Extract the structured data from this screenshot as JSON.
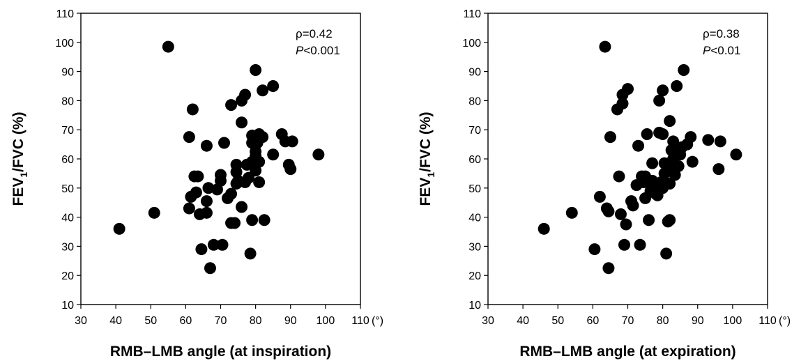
{
  "chart_data": [
    {
      "type": "scatter",
      "xlabel": "RMB–LMB angle (at inspiration)",
      "ylabel_main": "FEV",
      "ylabel_sub": "1",
      "ylabel_rest": "/FVC (%)",
      "xlim": [
        30,
        110
      ],
      "ylim": [
        10,
        110
      ],
      "xticks": [
        "30",
        "40",
        "50",
        "60",
        "70",
        "80",
        "90",
        "100",
        "110"
      ],
      "yticks": [
        "10",
        "20",
        "30",
        "40",
        "50",
        "60",
        "70",
        "80",
        "90",
        "100",
        "110"
      ],
      "x_unit": "(°)",
      "annotation_rho": "ρ=0.42",
      "annotation_p_italic": "P",
      "annotation_p_rest": "<0.001",
      "points": [
        [
          41,
          36
        ],
        [
          51,
          41.5
        ],
        [
          55,
          98.5
        ],
        [
          61,
          67.5
        ],
        [
          61,
          43
        ],
        [
          61.5,
          47
        ],
        [
          62,
          77
        ],
        [
          62.5,
          54
        ],
        [
          63,
          48.5
        ],
        [
          63.5,
          54
        ],
        [
          64,
          41
        ],
        [
          64.5,
          29
        ],
        [
          66,
          45.5
        ],
        [
          66,
          41.5
        ],
        [
          66,
          64.5
        ],
        [
          66.5,
          50
        ],
        [
          67,
          22.5
        ],
        [
          68,
          30.5
        ],
        [
          69,
          49.5
        ],
        [
          70,
          52.5
        ],
        [
          70,
          54.5
        ],
        [
          70.5,
          30.5
        ],
        [
          71,
          65.5
        ],
        [
          72,
          46.5
        ],
        [
          73,
          78.5
        ],
        [
          73,
          48
        ],
        [
          73,
          38
        ],
        [
          74,
          38
        ],
        [
          74.5,
          51.5
        ],
        [
          74.5,
          55.5
        ],
        [
          74.5,
          58
        ],
        [
          75,
          52.5
        ],
        [
          76,
          43.5
        ],
        [
          76,
          80
        ],
        [
          76,
          72.5
        ],
        [
          77,
          82
        ],
        [
          77,
          52
        ],
        [
          77.5,
          58
        ],
        [
          78,
          53.5
        ],
        [
          78.5,
          27.5
        ],
        [
          79,
          39
        ],
        [
          79,
          65.5
        ],
        [
          79,
          59
        ],
        [
          79,
          68
        ],
        [
          80,
          61
        ],
        [
          80,
          56
        ],
        [
          80,
          62.5
        ],
        [
          80,
          90.5
        ],
        [
          80.5,
          65.5
        ],
        [
          81,
          52
        ],
        [
          81,
          59
        ],
        [
          81,
          68.5
        ],
        [
          82,
          83.5
        ],
        [
          82,
          67.5
        ],
        [
          82.5,
          39
        ],
        [
          85,
          85
        ],
        [
          85,
          61.5
        ],
        [
          87.5,
          68.5
        ],
        [
          88.5,
          66
        ],
        [
          89.5,
          58
        ],
        [
          90,
          56.5
        ],
        [
          90.5,
          66
        ],
        [
          98,
          61.5
        ]
      ]
    },
    {
      "type": "scatter",
      "xlabel": "RMB–LMB angle (at expiration)",
      "ylabel_main": "FEV",
      "ylabel_sub": "1",
      "ylabel_rest": "/FVC (%)",
      "xlim": [
        30,
        110
      ],
      "ylim": [
        10,
        110
      ],
      "xticks": [
        "30",
        "40",
        "50",
        "60",
        "70",
        "80",
        "90",
        "100",
        "110"
      ],
      "yticks": [
        "10",
        "20",
        "30",
        "40",
        "50",
        "60",
        "70",
        "80",
        "90",
        "100",
        "110"
      ],
      "x_unit": "(°)",
      "annotation_rho": "ρ=0.38",
      "annotation_p_italic": "P",
      "annotation_p_rest": "<0.01",
      "points": [
        [
          46,
          36
        ],
        [
          54,
          41.5
        ],
        [
          60.5,
          29
        ],
        [
          62,
          47
        ],
        [
          63.5,
          98.5
        ],
        [
          64,
          43
        ],
        [
          64.5,
          42
        ],
        [
          64.5,
          22.5
        ],
        [
          65,
          67.5
        ],
        [
          67,
          77
        ],
        [
          67.5,
          54
        ],
        [
          68,
          41
        ],
        [
          68.5,
          79
        ],
        [
          68.5,
          82
        ],
        [
          69,
          30.5
        ],
        [
          69.5,
          37.5
        ],
        [
          70,
          84
        ],
        [
          71,
          45.5
        ],
        [
          71.5,
          44
        ],
        [
          72.5,
          51
        ],
        [
          73,
          64.5
        ],
        [
          73.5,
          30.5
        ],
        [
          74,
          54
        ],
        [
          74.5,
          52
        ],
        [
          75,
          46.5
        ],
        [
          75,
          54
        ],
        [
          75.5,
          68.5
        ],
        [
          76,
          39
        ],
        [
          76.5,
          49
        ],
        [
          77,
          52.5
        ],
        [
          77,
          58.5
        ],
        [
          77.5,
          50.5
        ],
        [
          78,
          48
        ],
        [
          78.5,
          47.5
        ],
        [
          79,
          80
        ],
        [
          79,
          69
        ],
        [
          79.5,
          52
        ],
        [
          80,
          50
        ],
        [
          80,
          83.5
        ],
        [
          80,
          68.5
        ],
        [
          80.5,
          58.5
        ],
        [
          80.5,
          55
        ],
        [
          81,
          27.5
        ],
        [
          81.5,
          38.5
        ],
        [
          82,
          51.5
        ],
        [
          82,
          73
        ],
        [
          82,
          39
        ],
        [
          82.5,
          56.5
        ],
        [
          82.5,
          63
        ],
        [
          83,
          66
        ],
        [
          83,
          60
        ],
        [
          83.5,
          54.5
        ],
        [
          84,
          62.5
        ],
        [
          84,
          85
        ],
        [
          84.5,
          57.5
        ],
        [
          85,
          61.5
        ],
        [
          85.5,
          64
        ],
        [
          86,
          90.5
        ],
        [
          87,
          65
        ],
        [
          88,
          67.5
        ],
        [
          88.5,
          59
        ],
        [
          93,
          66.5
        ],
        [
          96,
          56.5
        ],
        [
          96.5,
          66
        ],
        [
          101,
          61.5
        ]
      ]
    }
  ]
}
